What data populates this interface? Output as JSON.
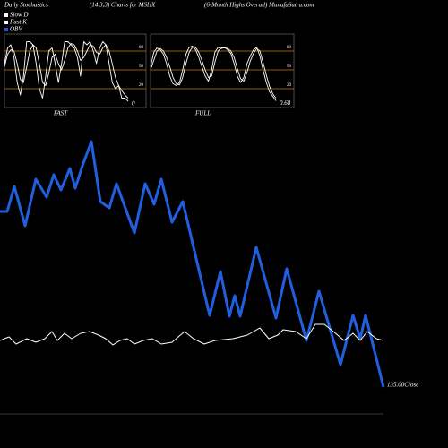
{
  "header": {
    "left": "Daily Stochastics",
    "center": "(14,3,3) Charts for MSHX",
    "right": "(6-Month Highs Overall) MunafaSutra.com"
  },
  "chart_data": [
    {
      "type": "line",
      "x_label": "FAST",
      "ylim": [
        0,
        100
      ],
      "yticks": [
        80,
        50,
        20
      ],
      "grid": true,
      "grid_color": "#c07a00",
      "last_value_label": "0",
      "series": [
        {
          "name": "Fast K",
          "color": "#ffffff",
          "values": [
            60,
            85,
            90,
            70,
            30,
            10,
            40,
            95,
            95,
            90,
            60,
            20,
            5,
            40,
            80,
            85,
            60,
            30,
            60,
            95,
            95,
            90,
            85,
            70,
            40,
            95,
            90,
            95,
            80,
            60,
            85,
            95,
            90,
            60,
            30,
            20,
            25,
            5,
            5,
            0
          ]
        },
        {
          "name": "Slow D",
          "color": "#ffffff",
          "values": [
            55,
            75,
            82,
            80,
            60,
            35,
            30,
            55,
            80,
            90,
            85,
            60,
            30,
            25,
            45,
            70,
            75,
            60,
            50,
            65,
            85,
            92,
            90,
            80,
            65,
            70,
            80,
            90,
            88,
            78,
            75,
            85,
            90,
            80,
            60,
            38,
            25,
            17,
            10,
            5
          ]
        }
      ]
    },
    {
      "type": "line",
      "x_label": "FULL",
      "ylim": [
        0,
        100
      ],
      "yticks": [
        80,
        50,
        20
      ],
      "grid": true,
      "grid_color": "#c07a00",
      "last_value_label": "0.68",
      "series": [
        {
          "name": "Fast K",
          "color": "#ffffff",
          "values": [
            55,
            78,
            85,
            82,
            75,
            60,
            40,
            28,
            25,
            30,
            50,
            75,
            86,
            88,
            82,
            70,
            55,
            40,
            32,
            50,
            78,
            86,
            84,
            86,
            82,
            76,
            60,
            40,
            30,
            38,
            60,
            72,
            82,
            86,
            72,
            50,
            30,
            15,
            8,
            0.68
          ]
        },
        {
          "name": "Slow D",
          "color": "#ffffff",
          "values": [
            50,
            65,
            80,
            84,
            80,
            70,
            55,
            38,
            28,
            26,
            38,
            60,
            78,
            86,
            86,
            78,
            65,
            50,
            38,
            40,
            62,
            80,
            85,
            85,
            84,
            80,
            70,
            52,
            36,
            32,
            46,
            64,
            76,
            84,
            80,
            62,
            42,
            24,
            12,
            5
          ]
        }
      ]
    },
    {
      "type": "line",
      "xlim": [
        0,
        428
      ],
      "ylim": [
        0,
        330
      ],
      "last_value_label": "135.00Close",
      "x": [
        0,
        8,
        16,
        28,
        40,
        52,
        60,
        68,
        78,
        84,
        92,
        102,
        112,
        122,
        130,
        150,
        162,
        172,
        180,
        192,
        204,
        234,
        246,
        256,
        262,
        268,
        286,
        308,
        320,
        342,
        356,
        380,
        394,
        402,
        408,
        428
      ],
      "series": [
        {
          "name": "OBV",
          "color": "#1f5fe0",
          "values": [
            224,
            224,
            252,
            208,
            260,
            240,
            265,
            248,
            272,
            250,
            275,
            302,
            235,
            228,
            255,
            200,
            255,
            232,
            260,
            212,
            235,
            108,
            157,
            107,
            130,
            107,
            184,
            105,
            160,
            80,
            135,
            53,
            108,
            82,
            108,
            28
          ]
        }
      ]
    },
    {
      "type": "line",
      "xlim": [
        0,
        428
      ],
      "ylim": [
        0,
        330
      ],
      "x": [
        0,
        10,
        18,
        30,
        40,
        50,
        58,
        64,
        72,
        80,
        90,
        100,
        110,
        118,
        126,
        134,
        142,
        150,
        160,
        170,
        180,
        192,
        206,
        216,
        228,
        240,
        260,
        276,
        290,
        300,
        310,
        316,
        330,
        342,
        352,
        362,
        372,
        384,
        394,
        402,
        410,
        420,
        428
      ],
      "series": [
        {
          "name": "Close",
          "color": "#ffffff",
          "values": [
            80,
            84,
            76,
            82,
            78,
            82,
            90,
            80,
            88,
            82,
            88,
            90,
            86,
            82,
            75,
            80,
            82,
            76,
            80,
            82,
            76,
            78,
            90,
            82,
            76,
            80,
            82,
            86,
            94,
            82,
            86,
            92,
            90,
            82,
            98,
            98,
            90,
            80,
            88,
            80,
            90,
            82,
            80
          ]
        }
      ]
    }
  ]
}
